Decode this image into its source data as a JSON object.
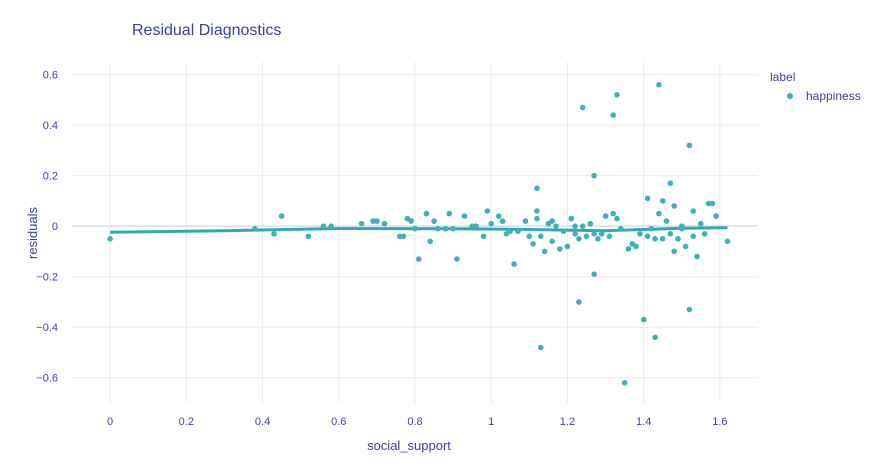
{
  "chart_data": {
    "type": "scatter",
    "title": "Residual Diagnostics",
    "xlabel": "social_support",
    "ylabel": "residuals",
    "xlim": [
      -0.1,
      1.7
    ],
    "ylim": [
      -0.7,
      0.65
    ],
    "x_ticks": [
      0,
      0.2,
      0.4,
      0.6,
      0.8,
      1,
      1.2,
      1.4,
      1.6
    ],
    "x_tick_labels": [
      "0",
      "0.2",
      "0.4",
      "0.6",
      "0.8",
      "1",
      "1.2",
      "1.4",
      "1.6"
    ],
    "y_ticks": [
      -0.6,
      -0.4,
      -0.2,
      0,
      0.2,
      0.4,
      0.6
    ],
    "y_tick_labels": [
      "−0.6",
      "−0.4",
      "−0.2",
      "0",
      "0.2",
      "0.4",
      "0.6"
    ],
    "grid": true,
    "legend": {
      "title": "label",
      "position": "top-right",
      "entries": [
        "happiness"
      ]
    },
    "colors": {
      "points": "#3cb1b8",
      "trend": "#2eaab4",
      "text": "#3b3fa0",
      "grid": "#ebebf0"
    },
    "series": [
      {
        "name": "happiness",
        "points": [
          [
            0.0,
            -0.05
          ],
          [
            0.38,
            -0.01
          ],
          [
            0.43,
            -0.03
          ],
          [
            0.45,
            0.04
          ],
          [
            0.52,
            -0.04
          ],
          [
            0.56,
            -0.0
          ],
          [
            0.58,
            -0.0
          ],
          [
            0.66,
            0.01
          ],
          [
            0.69,
            0.02
          ],
          [
            0.7,
            0.02
          ],
          [
            0.72,
            0.01
          ],
          [
            0.76,
            -0.04
          ],
          [
            0.77,
            -0.04
          ],
          [
            0.78,
            0.03
          ],
          [
            0.79,
            0.02
          ],
          [
            0.8,
            -0.01
          ],
          [
            0.81,
            -0.13
          ],
          [
            0.83,
            0.05
          ],
          [
            0.84,
            -0.06
          ],
          [
            0.85,
            0.02
          ],
          [
            0.86,
            -0.01
          ],
          [
            0.88,
            -0.01
          ],
          [
            0.89,
            0.05
          ],
          [
            0.9,
            -0.01
          ],
          [
            0.91,
            -0.13
          ],
          [
            0.93,
            0.04
          ],
          [
            0.95,
            -0.0
          ],
          [
            0.96,
            0.0
          ],
          [
            0.98,
            -0.04
          ],
          [
            0.99,
            0.06
          ],
          [
            1.0,
            0.01
          ],
          [
            1.02,
            0.04
          ],
          [
            1.03,
            0.02
          ],
          [
            1.04,
            -0.03
          ],
          [
            1.05,
            -0.02
          ],
          [
            1.06,
            -0.15
          ],
          [
            1.07,
            -0.02
          ],
          [
            1.09,
            0.02
          ],
          [
            1.1,
            -0.04
          ],
          [
            1.11,
            -0.07
          ],
          [
            1.12,
            0.03
          ],
          [
            1.12,
            0.15
          ],
          [
            1.12,
            0.06
          ],
          [
            1.13,
            -0.04
          ],
          [
            1.13,
            -0.48
          ],
          [
            1.14,
            -0.1
          ],
          [
            1.15,
            0.01
          ],
          [
            1.16,
            0.02
          ],
          [
            1.16,
            -0.06
          ],
          [
            1.17,
            0.0
          ],
          [
            1.18,
            -0.09
          ],
          [
            1.19,
            -0.02
          ],
          [
            1.2,
            -0.08
          ],
          [
            1.21,
            0.03
          ],
          [
            1.22,
            -0.03
          ],
          [
            1.22,
            0.0
          ],
          [
            1.23,
            -0.05
          ],
          [
            1.23,
            -0.3
          ],
          [
            1.24,
            -0.0
          ],
          [
            1.24,
            0.47
          ],
          [
            1.25,
            -0.04
          ],
          [
            1.26,
            0.01
          ],
          [
            1.27,
            -0.19
          ],
          [
            1.27,
            -0.03
          ],
          [
            1.27,
            0.2
          ],
          [
            1.28,
            -0.05
          ],
          [
            1.29,
            -0.03
          ],
          [
            1.3,
            0.04
          ],
          [
            1.31,
            -0.04
          ],
          [
            1.32,
            0.05
          ],
          [
            1.32,
            0.44
          ],
          [
            1.33,
            0.52
          ],
          [
            1.33,
            0.03
          ],
          [
            1.34,
            -0.01
          ],
          [
            1.35,
            -0.62
          ],
          [
            1.36,
            -0.09
          ],
          [
            1.37,
            -0.07
          ],
          [
            1.38,
            -0.08
          ],
          [
            1.39,
            -0.03
          ],
          [
            1.4,
            -0.37
          ],
          [
            1.41,
            0.11
          ],
          [
            1.41,
            -0.04
          ],
          [
            1.42,
            -0.01
          ],
          [
            1.43,
            -0.44
          ],
          [
            1.43,
            -0.05
          ],
          [
            1.44,
            0.56
          ],
          [
            1.44,
            0.05
          ],
          [
            1.45,
            -0.05
          ],
          [
            1.45,
            0.1
          ],
          [
            1.46,
            0.02
          ],
          [
            1.47,
            0.17
          ],
          [
            1.47,
            -0.03
          ],
          [
            1.48,
            -0.1
          ],
          [
            1.48,
            0.08
          ],
          [
            1.49,
            -0.05
          ],
          [
            1.5,
            -0.01
          ],
          [
            1.5,
            0.0
          ],
          [
            1.51,
            -0.08
          ],
          [
            1.52,
            0.32
          ],
          [
            1.52,
            -0.33
          ],
          [
            1.53,
            0.06
          ],
          [
            1.53,
            -0.04
          ],
          [
            1.54,
            -0.12
          ],
          [
            1.55,
            0.01
          ],
          [
            1.56,
            -0.03
          ],
          [
            1.57,
            0.09
          ],
          [
            1.58,
            0.09
          ],
          [
            1.59,
            0.04
          ],
          [
            1.62,
            -0.06
          ]
        ]
      }
    ],
    "trendline": {
      "name": "trend",
      "points": [
        [
          0.0,
          -0.024
        ],
        [
          0.3,
          -0.018
        ],
        [
          0.6,
          -0.009
        ],
        [
          0.9,
          -0.01
        ],
        [
          1.1,
          -0.013
        ],
        [
          1.3,
          -0.018
        ],
        [
          1.4,
          -0.013
        ],
        [
          1.5,
          -0.008
        ],
        [
          1.62,
          -0.006
        ]
      ]
    }
  }
}
